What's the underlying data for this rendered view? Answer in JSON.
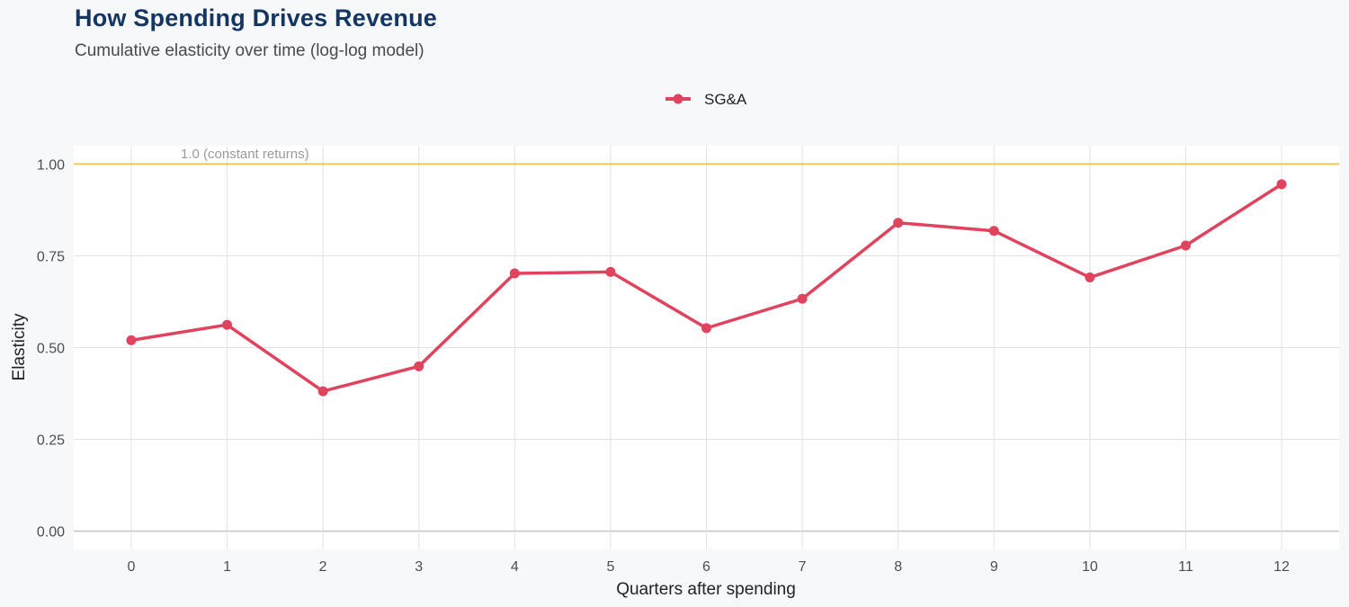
{
  "title": "How Spending Drives Revenue",
  "subtitle": "Cumulative elasticity over time (log-log model)",
  "colors": {
    "series": "#e0435e",
    "reference_line": "#f2c94c",
    "grid": "#e2e2e2",
    "panel": "#ffffff",
    "title": "#143660"
  },
  "chart_data": {
    "type": "line",
    "title": "How Spending Drives Revenue",
    "subtitle": "Cumulative elasticity over time (log-log model)",
    "xlabel": "Quarters after spending",
    "ylabel": "Elasticity",
    "x": [
      0,
      1,
      2,
      3,
      4,
      5,
      6,
      7,
      8,
      9,
      10,
      11,
      12
    ],
    "xlim": [
      -0.6,
      12.6
    ],
    "ylim": [
      -0.05,
      1.05
    ],
    "yticks": [
      0.0,
      0.25,
      0.5,
      0.75,
      1.0
    ],
    "ytick_labels": [
      "0.00",
      "0.25",
      "0.50",
      "0.75",
      "1.00"
    ],
    "xtick_labels": [
      "0",
      "1",
      "2",
      "3",
      "4",
      "5",
      "6",
      "7",
      "8",
      "9",
      "10",
      "11",
      "12"
    ],
    "series": [
      {
        "name": "SG&A",
        "values": [
          0.52,
          0.562,
          0.381,
          0.449,
          0.702,
          0.706,
          0.553,
          0.633,
          0.84,
          0.818,
          0.691,
          0.778,
          0.945
        ]
      }
    ],
    "reference_line": {
      "y": 1.0,
      "label": "1.0 (constant returns)"
    },
    "legend": {
      "position": "top",
      "entries": [
        "SG&A"
      ]
    },
    "grid": true
  }
}
